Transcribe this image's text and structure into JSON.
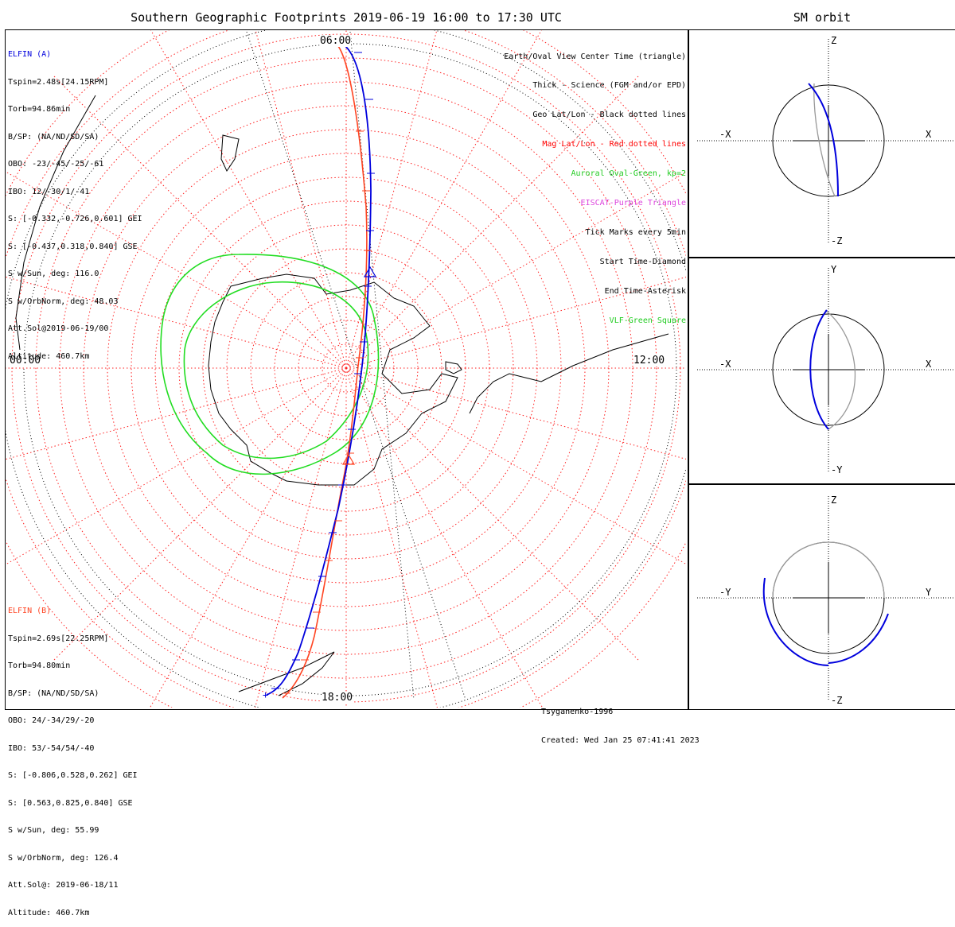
{
  "title": "Southern Geographic Footprints 2019-06-19 16:00 to 17:30 UTC",
  "sm_title": "SM orbit",
  "map": {
    "mlt_labels": {
      "top": "06:00",
      "left": "00:00",
      "right": "12:00",
      "bottom": "18:00"
    },
    "colors": {
      "elfin_a": "#0000dd",
      "elfin_b": "#ff4422",
      "auroral_oval": "#22dd22",
      "mag_grid": "#ff2222",
      "geo_grid": "#000000"
    }
  },
  "elfin_a": {
    "lines": [
      "ELFIN (A)",
      "Tspin=2.48s[24.15RPM]",
      "Torb=94.86min",
      "B/SP: (NA/ND/SD/SA)",
      "OBO: -23/-45/-25/-61",
      "IBO: 12/-30/1/-41",
      "S: [-0.332,-0.726,0.601] GEI",
      "S: [-0.437,0.318,0.840] GSE",
      "S w/Sun, deg: 116.0",
      "S w/OrbNorm, deg: 48.03",
      "Att.Sol@2019-06-19/00",
      "Altitude: 460.7km"
    ]
  },
  "elfin_b": {
    "lines": [
      "ELFIN (B)",
      "Tspin=2.69s[22.25RPM]",
      "Torb=94.80min",
      "B/SP: (NA/ND/SD/SA)",
      "OBO: 24/-34/29/-20",
      "IBO: 53/-54/54/-40",
      "S: [-0.806,0.528,0.262] GEI",
      "S: [0.563,0.825,0.840] GSE",
      "S w/Sun, deg: 55.99",
      "S w/OrbNorm, deg: 126.4",
      "Att.Sol@: 2019-06-18/11",
      "Altitude: 460.7km"
    ]
  },
  "legend": [
    {
      "text": "Earth/Oval View Center Time (triangle)",
      "color": "#000000"
    },
    {
      "text": "Thick - Science (FGM and/or EPD)",
      "color": "#000000"
    },
    {
      "text": "Geo Lat/Lon - Black dotted lines",
      "color": "#000000"
    },
    {
      "text": "Mag Lat/Lon - Red dotted lines",
      "color": "#ff0000"
    },
    {
      "text": "Auroral Oval-Green, kp=2",
      "color": "#22cc22"
    },
    {
      "text": "EISCAT-Purple Triangle",
      "color": "#dd44dd"
    },
    {
      "text": "Tick Marks every 5min",
      "color": "#000000"
    },
    {
      "text": "Start Time-Diamond",
      "color": "#000000"
    },
    {
      "text": "End Time-Asterisk",
      "color": "#000000"
    },
    {
      "text": "VLF-Green Square",
      "color": "#22cc22"
    }
  ],
  "credit": {
    "model": "Tsyganenko-1996",
    "created": "Created: Wed Jan 25 07:41:41 2023"
  },
  "sm_panels": [
    {
      "name": "xz",
      "top": "Z",
      "bottom": "-Z",
      "left": "-X",
      "right": "X"
    },
    {
      "name": "xy",
      "top": "Y",
      "bottom": "-Y",
      "left": "-X",
      "right": "X"
    },
    {
      "name": "yz",
      "top": "Z",
      "bottom": "-Z",
      "left": "-Y",
      "right": "Y"
    }
  ],
  "chart_data": {
    "type": "map",
    "projection": "south polar stereographic, magnetic local time grid",
    "mlt_ticks": [
      "00:00",
      "06:00",
      "12:00",
      "18:00"
    ],
    "tick_interval": "5min",
    "series": [
      {
        "name": "ELFIN (A)",
        "color": "#0000dd"
      },
      {
        "name": "ELFIN (B)",
        "color": "#ff4422"
      },
      {
        "name": "Auroral Oval",
        "kp": 2,
        "color": "#22dd22"
      }
    ]
  }
}
